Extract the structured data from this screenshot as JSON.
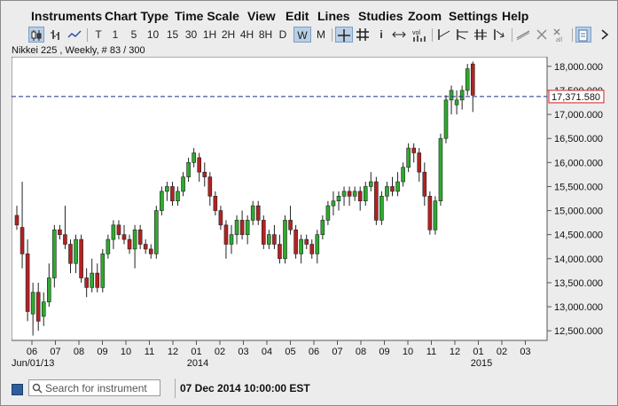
{
  "menu": [
    "Instruments",
    "Chart Type",
    "Time Scale",
    "View",
    "Edit",
    "Lines",
    "Studies",
    "Zoom",
    "Settings",
    "Help"
  ],
  "toolbar": {
    "intervals": [
      "T",
      "1",
      "5",
      "10",
      "15",
      "30",
      "1H",
      "2H",
      "4H",
      "8H",
      "D",
      "W",
      "M"
    ],
    "active_interval": "W",
    "vol_label": "vol",
    "all_label": "all"
  },
  "subtitle": "Nikkei 225 , Weekly, # 83 / 300",
  "price_label": "17,371.580",
  "search_placeholder": "Search for instrument",
  "datetime": "07 Dec 2014 10:00:00 EST",
  "colors": {
    "up": "#2eaa2e",
    "down": "#b52121",
    "last_line": "#1f2a8a",
    "price_box": "#d42020"
  },
  "chart_data": {
    "type": "candlestick",
    "instrument": "Nikkei 225",
    "timeframe": "Weekly",
    "ylim": [
      12300,
      18200
    ],
    "y_ticks": [
      "18,000.000",
      "17,500.000",
      "17,000.000",
      "16,500.000",
      "16,000.000",
      "15,500.000",
      "15,000.000",
      "14,500.000",
      "14,000.000",
      "13,500.000",
      "13,000.000",
      "12,500.000"
    ],
    "x_ticks": [
      "06",
      "07",
      "08",
      "09",
      "10",
      "11",
      "12",
      "01",
      "02",
      "03",
      "04",
      "05",
      "06",
      "07",
      "08",
      "09",
      "10",
      "11",
      "12",
      "01",
      "02",
      "03"
    ],
    "x_lower": [
      "Jun/01/13",
      "2014",
      "2015"
    ],
    "last_price": 17371.58,
    "candles": [
      [
        14900,
        15100,
        14600,
        14700
      ],
      [
        14650,
        15600,
        13800,
        14100
      ],
      [
        14100,
        14400,
        12700,
        12900
      ],
      [
        12850,
        13500,
        12400,
        13300
      ],
      [
        13300,
        13500,
        12500,
        12700
      ],
      [
        12800,
        13300,
        12600,
        13100
      ],
      [
        13100,
        13900,
        13000,
        13600
      ],
      [
        13600,
        14700,
        13400,
        14600
      ],
      [
        14600,
        14700,
        14400,
        14500
      ],
      [
        14500,
        15100,
        14200,
        14300
      ],
      [
        14300,
        14400,
        13700,
        13900
      ],
      [
        13900,
        14500,
        13700,
        14400
      ],
      [
        14400,
        14500,
        13500,
        13600
      ],
      [
        13600,
        13800,
        13200,
        13400
      ],
      [
        13400,
        14000,
        13300,
        13700
      ],
      [
        13700,
        13900,
        13300,
        13400
      ],
      [
        13400,
        14200,
        13300,
        14100
      ],
      [
        14100,
        14500,
        14000,
        14400
      ],
      [
        14400,
        14800,
        14200,
        14700
      ],
      [
        14700,
        14800,
        14400,
        14500
      ],
      [
        14500,
        14700,
        14300,
        14400
      ],
      [
        14400,
        14500,
        14100,
        14200
      ],
      [
        14200,
        14700,
        13800,
        14600
      ],
      [
        14600,
        14700,
        14200,
        14300
      ],
      [
        14300,
        14400,
        14100,
        14200
      ],
      [
        14200,
        14300,
        14000,
        14100
      ],
      [
        14100,
        15100,
        14000,
        15000
      ],
      [
        15000,
        15500,
        14900,
        15400
      ],
      [
        15400,
        15600,
        15200,
        15500
      ],
      [
        15500,
        15600,
        15100,
        15200
      ],
      [
        15200,
        15500,
        15100,
        15400
      ],
      [
        15400,
        15800,
        15300,
        15700
      ],
      [
        15700,
        16100,
        15600,
        16000
      ],
      [
        16000,
        16300,
        15900,
        16200
      ],
      [
        16100,
        16200,
        15600,
        15800
      ],
      [
        15800,
        16000,
        15500,
        15700
      ],
      [
        15700,
        15800,
        15100,
        15300
      ],
      [
        15300,
        15400,
        14900,
        15000
      ],
      [
        15000,
        15100,
        14600,
        14700
      ],
      [
        14700,
        14800,
        14000,
        14300
      ],
      [
        14300,
        14700,
        14100,
        14500
      ],
      [
        14500,
        14900,
        14300,
        14800
      ],
      [
        14800,
        15000,
        14400,
        14500
      ],
      [
        14500,
        14900,
        14300,
        14800
      ],
      [
        14800,
        15200,
        14700,
        15100
      ],
      [
        15100,
        15200,
        14700,
        14800
      ],
      [
        14800,
        14900,
        14200,
        14300
      ],
      [
        14300,
        14600,
        14200,
        14500
      ],
      [
        14500,
        14700,
        14200,
        14300
      ],
      [
        14300,
        14500,
        13900,
        14000
      ],
      [
        14000,
        14900,
        13900,
        14800
      ],
      [
        14800,
        15100,
        14500,
        14600
      ],
      [
        14600,
        14700,
        14000,
        14100
      ],
      [
        14100,
        14500,
        13900,
        14400
      ],
      [
        14400,
        14500,
        14200,
        14300
      ],
      [
        14300,
        14400,
        14000,
        14100
      ],
      [
        14100,
        14600,
        13900,
        14500
      ],
      [
        14500,
        14900,
        14400,
        14800
      ],
      [
        14800,
        15200,
        14700,
        15100
      ],
      [
        15100,
        15400,
        14900,
        15200
      ],
      [
        15200,
        15400,
        15000,
        15300
      ],
      [
        15300,
        15500,
        15100,
        15400
      ],
      [
        15400,
        15500,
        15100,
        15300
      ],
      [
        15300,
        15500,
        15200,
        15400
      ],
      [
        15400,
        15500,
        15000,
        15200
      ],
      [
        15200,
        15600,
        15100,
        15500
      ],
      [
        15500,
        15800,
        15400,
        15600
      ],
      [
        15600,
        15700,
        14700,
        14800
      ],
      [
        14800,
        15400,
        14700,
        15300
      ],
      [
        15300,
        15600,
        15200,
        15500
      ],
      [
        15500,
        15700,
        15300,
        15400
      ],
      [
        15400,
        15800,
        15300,
        15600
      ],
      [
        15600,
        16000,
        15500,
        15900
      ],
      [
        15900,
        16400,
        15800,
        16300
      ],
      [
        16300,
        16400,
        16000,
        16200
      ],
      [
        16200,
        16300,
        15600,
        15800
      ],
      [
        15800,
        16000,
        15100,
        15300
      ],
      [
        15300,
        15400,
        14500,
        14600
      ],
      [
        14600,
        15300,
        14500,
        15200
      ],
      [
        15200,
        16600,
        15100,
        16500
      ],
      [
        16500,
        17400,
        16400,
        17300
      ],
      [
        17300,
        17600,
        17000,
        17500
      ],
      [
        17200,
        17500,
        17000,
        17300
      ],
      [
        17300,
        17600,
        17100,
        17500
      ],
      [
        17500,
        18050,
        17400,
        17950
      ],
      [
        18050,
        18100,
        17050,
        17400
      ]
    ]
  }
}
